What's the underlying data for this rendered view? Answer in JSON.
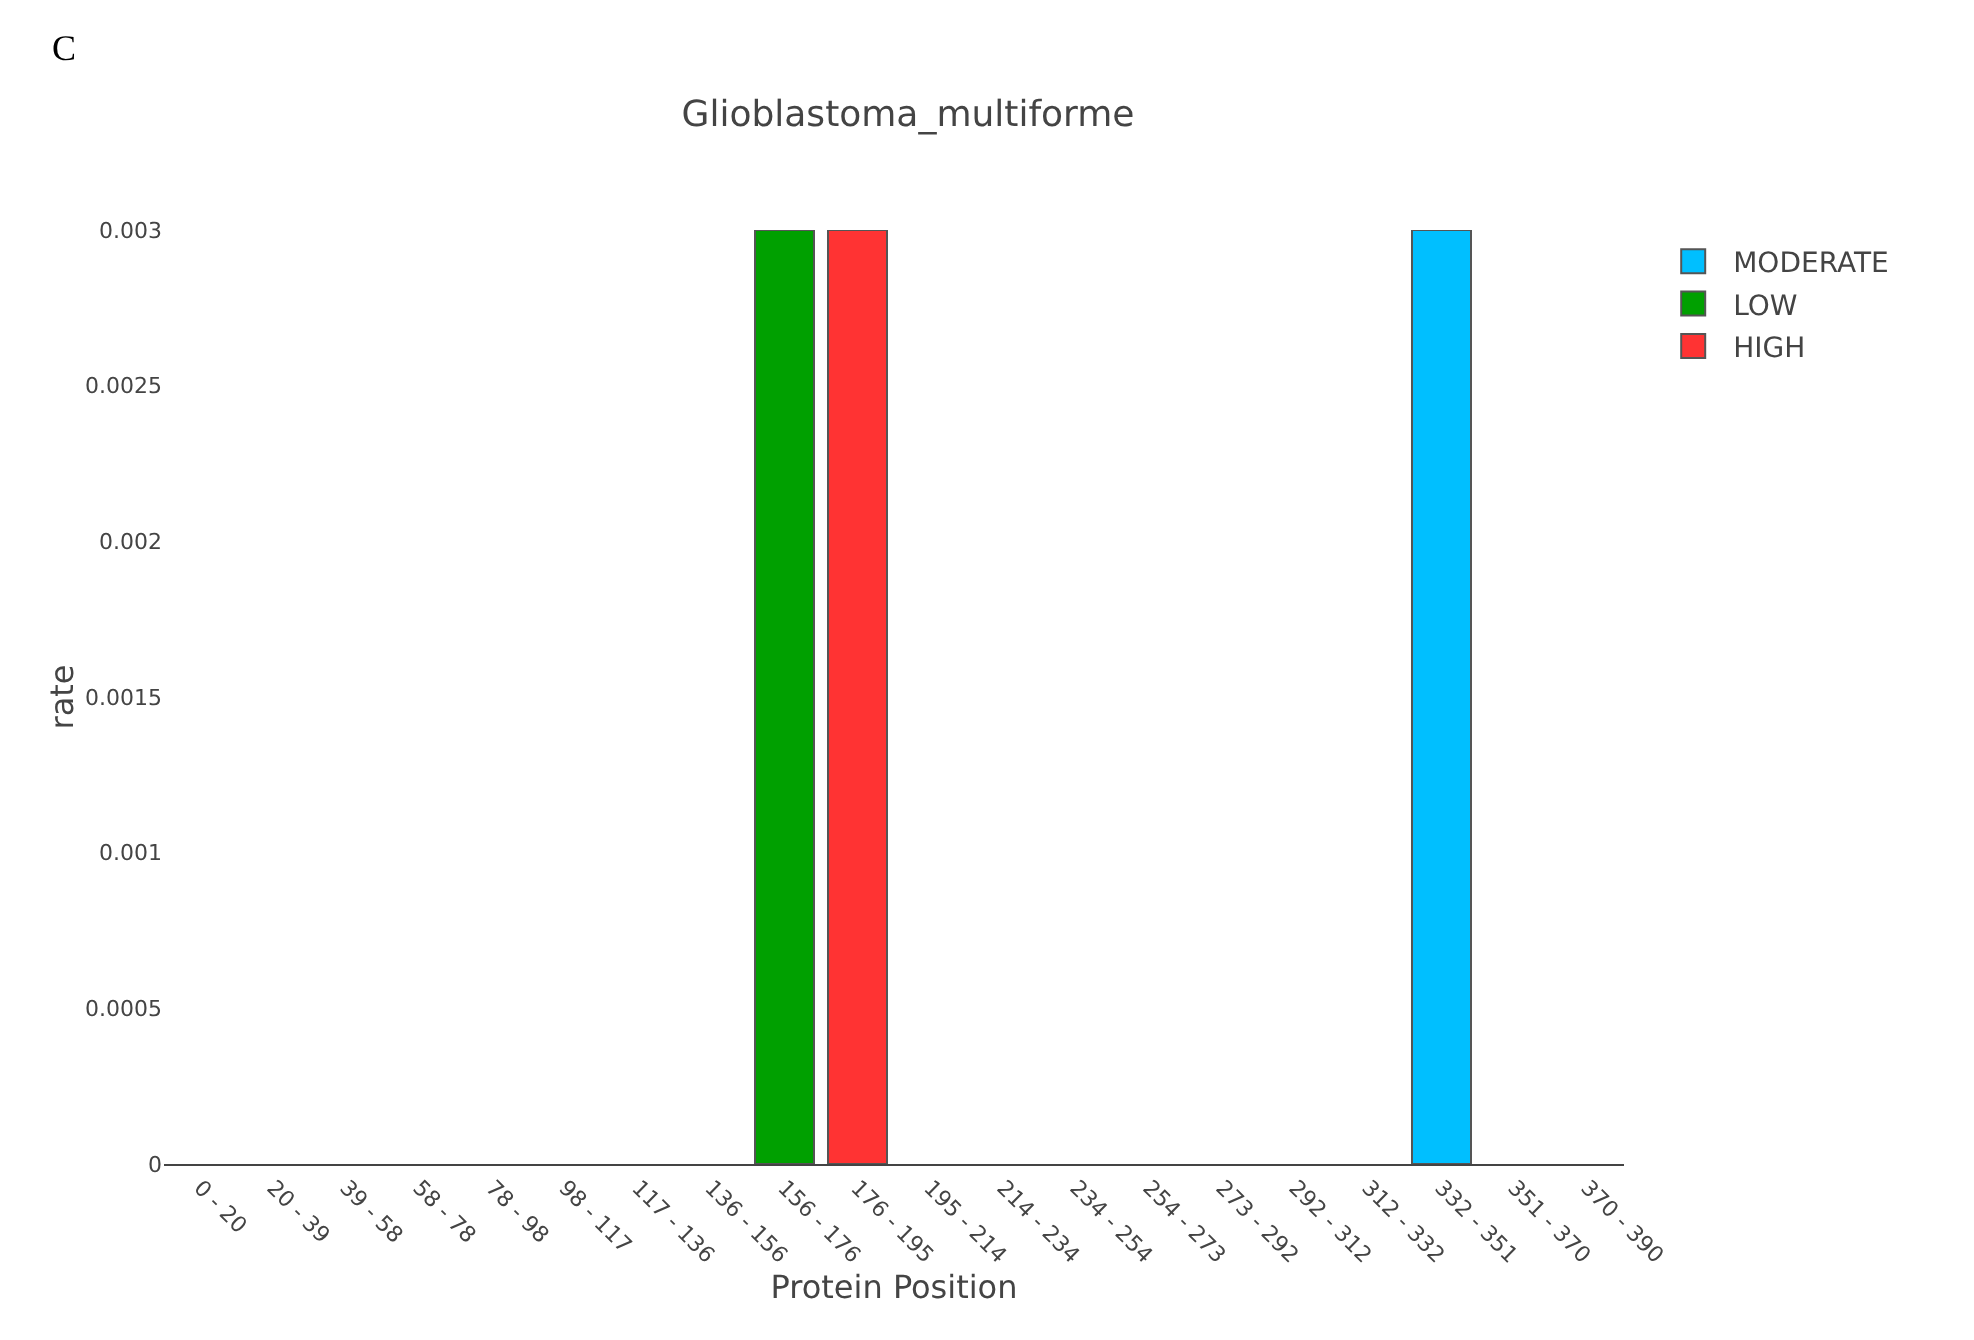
{
  "chart_data": {
    "type": "bar",
    "title": "Glioblastoma_multiforme",
    "xlabel": "Protein Position",
    "ylabel": "rate",
    "annotations": [
      "C"
    ],
    "categories": [
      "0 - 20",
      "20 - 39",
      "39 - 58",
      "58 - 78",
      "78 - 98",
      "98 - 117",
      "117 - 136",
      "136 - 156",
      "156 - 176",
      "176 - 195",
      "195 - 214",
      "214 - 234",
      "234 - 254",
      "254 - 273",
      "273 - 292",
      "292 - 312",
      "312 - 332",
      "332 - 351",
      "351 - 370",
      "370 - 390"
    ],
    "series": [
      {
        "name": "MODERATE",
        "color": "#00bfff",
        "values": [
          null,
          null,
          null,
          null,
          null,
          null,
          null,
          null,
          null,
          null,
          null,
          null,
          null,
          null,
          null,
          null,
          null,
          0.003,
          null,
          null
        ]
      },
      {
        "name": "LOW",
        "color": "#00a000",
        "values": [
          null,
          null,
          null,
          null,
          null,
          null,
          null,
          null,
          0.003,
          null,
          null,
          null,
          null,
          null,
          null,
          null,
          null,
          null,
          null,
          null
        ]
      },
      {
        "name": "HIGH",
        "color": "#ff3333",
        "values": [
          null,
          null,
          null,
          null,
          null,
          null,
          null,
          null,
          null,
          0.003,
          null,
          null,
          null,
          null,
          null,
          null,
          null,
          null,
          null,
          null
        ]
      }
    ],
    "stacked": true,
    "ylim": [
      0,
      0.003
    ],
    "yticks": [
      0,
      0.0005,
      0.001,
      0.0015,
      0.002,
      0.0025,
      0.003
    ],
    "grid": false,
    "legend": "top right"
  }
}
